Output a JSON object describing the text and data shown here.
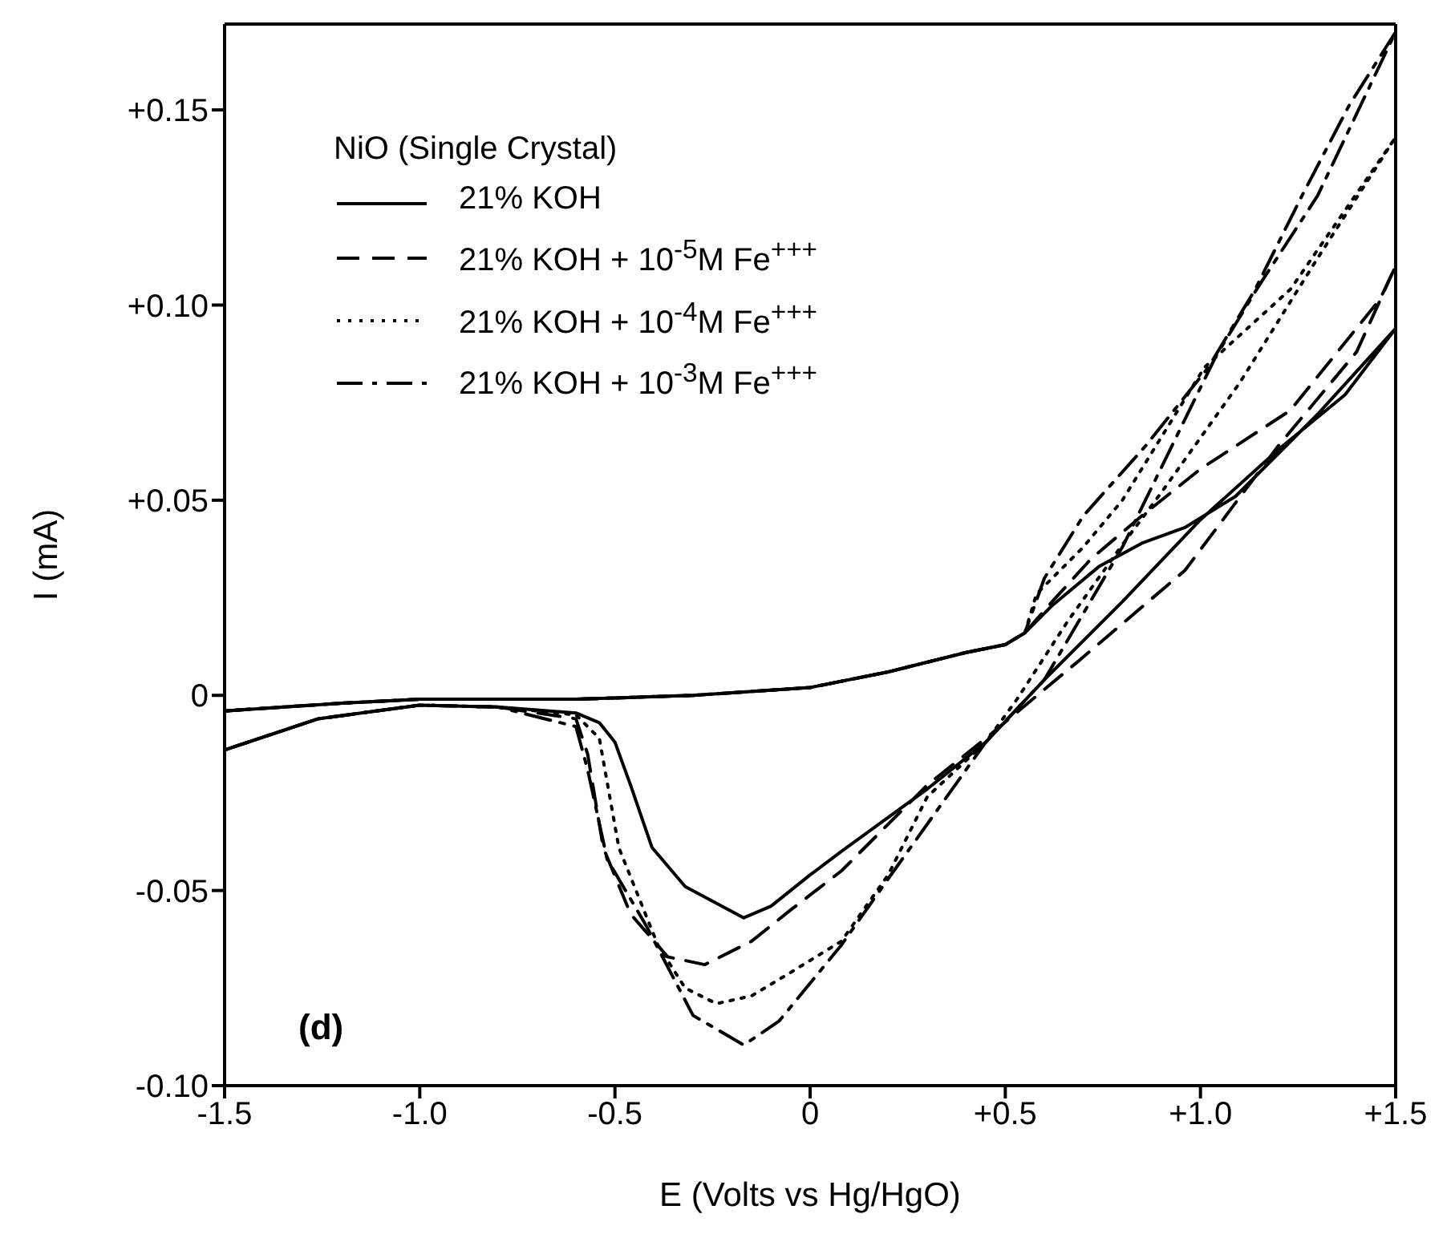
{
  "chart_data": {
    "type": "line",
    "xlabel": "E (Volts vs Hg/HgO)",
    "ylabel": "I (mA)",
    "legend_title": "NiO (Single Crystal)",
    "legend": "top left",
    "annotations": [
      "(d)"
    ],
    "xlim": [
      -1.5,
      1.5
    ],
    "xticks": [
      {
        "value": -1.5,
        "label": "-1.5"
      },
      {
        "value": -1,
        "label": "-1.0"
      },
      {
        "value": -0.5,
        "label": "-0.5"
      },
      0,
      {
        "value": 0.5,
        "label": "+0.5"
      },
      {
        "value": 1,
        "label": "+1.0"
      },
      {
        "value": 1.5,
        "label": "+1.5"
      }
    ],
    "ylim": [
      -0.1,
      0.172
    ],
    "yticks": [
      {
        "value": -0.1,
        "label": "-0.10"
      },
      -0.05,
      0,
      {
        "value": 0.05,
        "label": "+0.05"
      },
      {
        "value": 0.1,
        "label": "+0.10"
      },
      {
        "value": 0.15,
        "label": "+0.15"
      }
    ],
    "series": [
      {
        "name": "21% KOH",
        "color": "#000000",
        "line_style": "solid",
        "x": [
          -1.5,
          -1.2,
          -1.0,
          -0.6,
          -0.3,
          0,
          0.2,
          0.4,
          0.5,
          0.55,
          0.62,
          0.74,
          0.85,
          0.96,
          1.09,
          1.3,
          1.5,
          1.37,
          1.2,
          1.0,
          0.8,
          0.6,
          0.45,
          0.3,
          0.08,
          0,
          -0.1,
          -0.17,
          -0.32,
          -0.405,
          -0.46,
          -0.5,
          -0.54,
          -0.6,
          -0.8,
          -1.0,
          -1.26,
          -1.5
        ],
        "values": [
          -0.004,
          -0.002,
          -0.001,
          -0.001,
          0.0,
          0.002,
          0.006,
          0.011,
          0.013,
          0.016,
          0.023,
          0.033,
          0.039,
          0.043,
          0.051,
          0.072,
          0.094,
          0.077,
          0.063,
          0.045,
          0.024,
          0.004,
          -0.012,
          -0.024,
          -0.04,
          -0.046,
          -0.054,
          -0.057,
          -0.049,
          -0.039,
          -0.023,
          -0.012,
          -0.007,
          -0.0045,
          -0.003,
          -0.0025,
          -0.006,
          -0.014
        ]
      },
      {
        "name": "21% KOH + 10$^{-5}$M Fe$^{+++}$",
        "color": "#000000",
        "line_style": "dashed",
        "x": [
          -1.5,
          -1.2,
          -1.0,
          -0.6,
          -0.3,
          0,
          0.2,
          0.4,
          0.5,
          0.55,
          0.62,
          0.72,
          0.85,
          1.0,
          1.23,
          1.46,
          1.5,
          1.4,
          1.2,
          0.96,
          0.69,
          0.45,
          0.3,
          0.08,
          -0.05,
          -0.15,
          -0.27,
          -0.365,
          -0.46,
          -0.53,
          -0.57,
          -0.6,
          -0.8,
          -1.0,
          -1.26,
          -1.5
        ],
        "values": [
          -0.004,
          -0.002,
          -0.001,
          -0.001,
          0.0,
          0.002,
          0.006,
          0.011,
          0.013,
          0.016,
          0.024,
          0.035,
          0.046,
          0.058,
          0.073,
          0.1015,
          0.11,
          0.088,
          0.064,
          0.032,
          0.009,
          -0.011,
          -0.023,
          -0.045,
          -0.055,
          -0.063,
          -0.069,
          -0.067,
          -0.056,
          -0.039,
          -0.015,
          -0.006,
          -0.003,
          -0.0025,
          -0.006,
          -0.014
        ]
      },
      {
        "name": "21% KOH + 10$^{-4}$M  Fe$^{+++}$",
        "color": "#000000",
        "line_style": "dotted",
        "x": [
          -1.5,
          -1.2,
          -1.0,
          -0.6,
          -0.3,
          0,
          0.2,
          0.4,
          0.5,
          0.55,
          0.58,
          0.7,
          0.8,
          1.01,
          1.23,
          1.5,
          1.3,
          1.1,
          0.9,
          0.8,
          0.66,
          0.53,
          0.45,
          0.3,
          0.2,
          0.08,
          -0.05,
          -0.15,
          -0.24,
          -0.32,
          -0.39,
          -0.49,
          -0.54,
          -0.6,
          -0.8,
          -1.0,
          -1.26,
          -1.5
        ],
        "values": [
          -0.004,
          -0.002,
          -0.001,
          -0.001,
          0.0,
          0.002,
          0.006,
          0.011,
          0.013,
          0.016,
          0.026,
          0.038,
          0.05,
          0.084,
          0.104,
          0.143,
          0.112,
          0.08,
          0.052,
          0.0386,
          0.019,
          -0.001,
          -0.012,
          -0.026,
          -0.046,
          -0.063,
          -0.071,
          -0.077,
          -0.079,
          -0.075,
          -0.064,
          -0.039,
          -0.011,
          -0.005,
          -0.003,
          -0.0025,
          -0.006,
          -0.014
        ]
      },
      {
        "name": "21% KOH + 10$^{-3}$M  Fe$^{+++}$",
        "color": "#000000",
        "line_style": "dashdot",
        "x": [
          -1.5,
          -1.2,
          -1.0,
          -0.6,
          -0.3,
          0,
          0.2,
          0.4,
          0.5,
          0.55,
          0.6,
          0.7,
          0.86,
          1.02,
          1.14,
          1.26,
          1.38,
          1.5,
          1.3,
          1.15,
          1.04,
          0.8,
          0.6,
          0.45,
          0.2,
          0.08,
          -0.08,
          -0.17,
          -0.3,
          -0.42,
          -0.52,
          -0.57,
          -0.6,
          -0.8,
          -1.0,
          -1.26,
          -1.5
        ],
        "values": [
          -0.004,
          -0.002,
          -0.001,
          -0.001,
          0.0,
          0.002,
          0.006,
          0.011,
          0.013,
          0.016,
          0.03,
          0.046,
          0.064,
          0.084,
          0.104,
          0.128,
          0.151,
          0.17,
          0.128,
          0.105,
          0.087,
          0.038,
          0.004,
          -0.012,
          -0.047,
          -0.064,
          -0.0835,
          -0.0896,
          -0.082,
          -0.059,
          -0.042,
          -0.019,
          -0.008,
          -0.003,
          -0.0025,
          -0.006,
          -0.014
        ]
      }
    ]
  }
}
